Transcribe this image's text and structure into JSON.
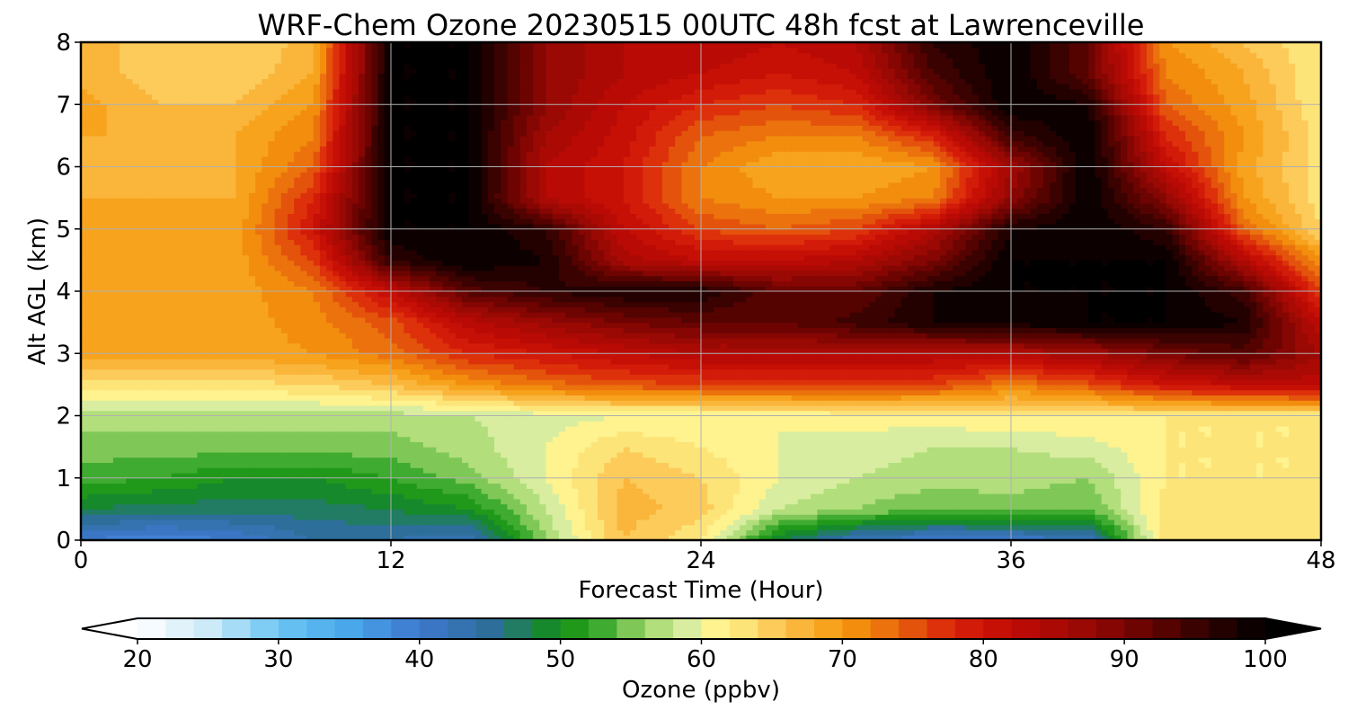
{
  "chart_data": {
    "type": "heatmap",
    "title": "WRF-Chem Ozone  20230515 00UTC 48h fcst at Lawrenceville",
    "xlabel": "Forecast Time (Hour)",
    "ylabel": "Alt AGL (km)",
    "xlim": [
      0,
      48
    ],
    "ylim": [
      0,
      8
    ],
    "xticks": [
      0,
      12,
      24,
      36,
      48
    ],
    "yticks": [
      0,
      1,
      2,
      3,
      4,
      5,
      6,
      7,
      8
    ],
    "grid": true,
    "x": [
      0,
      3,
      6,
      9,
      12,
      15,
      18,
      21,
      24,
      27,
      30,
      33,
      36,
      39,
      42,
      45,
      48
    ],
    "y": [
      0,
      0.5,
      1,
      1.5,
      2,
      2.5,
      3,
      3.5,
      4,
      4.5,
      5,
      5.5,
      6,
      6.5,
      7,
      7.5,
      8
    ],
    "z": [
      [
        40,
        38,
        40,
        44,
        44,
        42,
        56,
        66,
        62,
        48,
        42,
        40,
        40,
        42,
        64,
        63,
        62
      ],
      [
        48,
        47,
        47,
        47,
        48,
        50,
        58,
        67,
        65,
        58,
        56,
        54,
        55,
        54,
        63,
        63,
        62
      ],
      [
        53,
        52,
        50,
        50,
        52,
        55,
        60,
        66,
        64,
        60,
        58,
        57,
        57,
        56,
        62,
        62,
        62
      ],
      [
        55,
        55,
        55,
        55,
        55,
        57,
        60,
        64,
        62,
        60,
        59,
        58,
        58,
        59,
        62,
        62,
        62
      ],
      [
        57,
        57,
        57,
        57,
        57,
        58,
        59,
        60,
        60,
        60,
        61,
        61,
        62,
        62,
        62,
        62,
        62
      ],
      [
        63,
        63,
        63,
        64,
        66,
        70,
        73,
        75,
        76,
        77,
        77,
        76,
        72,
        75,
        80,
        82,
        83
      ],
      [
        69,
        69,
        69,
        70,
        73,
        78,
        80,
        82,
        84,
        84,
        84,
        84,
        84,
        86,
        90,
        93,
        86
      ],
      [
        69,
        69,
        69,
        71,
        75,
        83,
        87,
        90,
        92,
        92,
        95,
        98,
        99,
        100,
        100,
        98,
        82
      ],
      [
        69,
        69,
        69,
        72,
        82,
        93,
        96,
        98,
        98,
        92,
        92,
        98,
        100,
        100,
        100,
        95,
        76
      ],
      [
        69,
        69,
        69,
        76,
        96,
        100,
        98,
        85,
        82,
        82,
        84,
        90,
        100,
        100,
        100,
        84,
        70
      ],
      [
        69,
        69,
        69,
        80,
        100,
        100,
        96,
        82,
        76,
        74,
        76,
        84,
        98,
        100,
        96,
        74,
        64
      ],
      [
        68,
        68,
        68,
        78,
        100,
        100,
        84,
        80,
        72,
        70,
        70,
        72,
        88,
        100,
        88,
        70,
        63
      ],
      [
        68,
        67,
        68,
        74,
        100,
        100,
        84,
        80,
        72,
        68,
        68,
        70,
        86,
        100,
        82,
        69,
        63
      ],
      [
        68,
        68,
        68,
        72,
        100,
        100,
        86,
        81,
        74,
        72,
        72,
        78,
        95,
        100,
        78,
        70,
        63
      ],
      [
        69,
        66,
        66,
        70,
        100,
        100,
        88,
        82,
        78,
        76,
        78,
        90,
        100,
        98,
        74,
        69,
        62
      ],
      [
        67,
        65,
        64,
        68,
        100,
        100,
        88,
        84,
        82,
        80,
        82,
        94,
        100,
        92,
        72,
        68,
        62
      ],
      [
        67,
        65,
        64,
        67,
        100,
        100,
        88,
        84,
        84,
        82,
        84,
        96,
        100,
        92,
        70,
        66,
        62
      ]
    ],
    "colorbar": {
      "label": "Ozone  (ppbv)",
      "min": 20,
      "max": 100,
      "step": 2,
      "ticks": [
        20,
        30,
        40,
        50,
        60,
        70,
        80,
        90,
        100
      ],
      "extend": "both",
      "orientation": "horizontal"
    },
    "colormap": [
      [
        20,
        "#ffffff"
      ],
      [
        25,
        "#cdeaf8"
      ],
      [
        30,
        "#6cc6f3"
      ],
      [
        35,
        "#49a7ea"
      ],
      [
        40,
        "#3f78cf"
      ],
      [
        45,
        "#2d6f9a"
      ],
      [
        50,
        "#109010"
      ],
      [
        53,
        "#3fab30"
      ],
      [
        56,
        "#9fd66a"
      ],
      [
        59,
        "#d8eda0"
      ],
      [
        60,
        "#fffb9a"
      ],
      [
        63,
        "#fde479"
      ],
      [
        66,
        "#fcbe4a"
      ],
      [
        70,
        "#f59a0e"
      ],
      [
        74,
        "#e8640c"
      ],
      [
        78,
        "#d9200a"
      ],
      [
        82,
        "#c00a05"
      ],
      [
        86,
        "#a40a04"
      ],
      [
        90,
        "#7a0502"
      ],
      [
        95,
        "#3a0201"
      ],
      [
        100,
        "#000000"
      ]
    ]
  }
}
